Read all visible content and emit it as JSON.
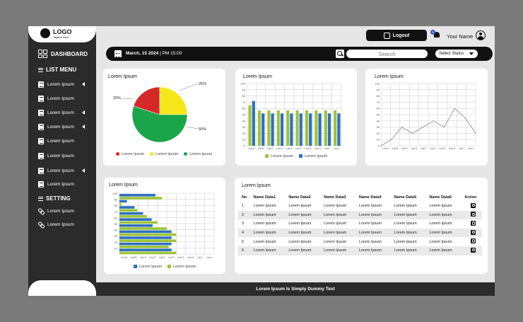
{
  "logo": {
    "text": "LOGO",
    "tagline": "Tagline Here"
  },
  "sidebar": {
    "dashboard_label": "DASHBOARD",
    "list_menu_label": "LIST MENU",
    "list_items": [
      {
        "label": "Lorem Ipsum",
        "caret": true
      },
      {
        "label": "Lorem Ipsum",
        "caret": false
      },
      {
        "label": "Lorem Ipsum",
        "caret": true
      },
      {
        "label": "Lorem Ipsum",
        "caret": true
      },
      {
        "label": "Lorem Ipsum",
        "caret": false
      },
      {
        "label": "Lorem Ipsum",
        "caret": false
      },
      {
        "label": "Lorem Ipsum",
        "caret": true
      },
      {
        "label": "Lorem Ipsum",
        "caret": false
      }
    ],
    "setting_label": "SETTING",
    "setting_items": [
      {
        "label": "Lorem Ipsum"
      },
      {
        "label": "Lorem Ipsum"
      }
    ]
  },
  "header": {
    "logout_label": "Logout",
    "notification_count": "5",
    "user_name": "Your Name",
    "date": "March, 15 2024",
    "time": "PM 15:00",
    "search_placeholder": "Search",
    "status_select": "Select Status"
  },
  "colors": {
    "accent_dark": "#111111",
    "sidebar": "#2b2b2b",
    "red": "#d62828",
    "yellow": "#f6e71a",
    "green": "#1aa54a",
    "blue": "#2f6fbf",
    "olive": "#9dc43a"
  },
  "chart_data": [
    {
      "type": "pie",
      "title": "Lorem Ipsum",
      "labels": [
        "Lorem Ipsum",
        "Lorem Ipsum",
        "Lorem Ipsum"
      ],
      "values": [
        20,
        25,
        55
      ],
      "value_labels": [
        "20%",
        "25%",
        "55%"
      ],
      "colors": [
        "#d62828",
        "#f6e71a",
        "#1aa54a"
      ],
      "legend": "bottom"
    },
    {
      "type": "bar",
      "title": "Lorem Ipsum",
      "categories": [
        "List A",
        "List B",
        "List C",
        "List D",
        "List E",
        "List F",
        "List G",
        "List H",
        "List I",
        "List J"
      ],
      "series": [
        {
          "name": "Lorem Ipsum",
          "color": "#9dc43a",
          "values": [
            65,
            57,
            57,
            57,
            57,
            57,
            57,
            57,
            57,
            57
          ]
        },
        {
          "name": "Lorem Ipsum",
          "color": "#2f6fbf",
          "values": [
            72,
            52,
            52,
            52,
            52,
            52,
            52,
            52,
            52,
            52
          ]
        }
      ],
      "ylim": [
        0,
        100
      ],
      "yticks": [
        0,
        10,
        20,
        30,
        40,
        50,
        60,
        70,
        80,
        90,
        100
      ],
      "grid": true,
      "legend": "bottom"
    },
    {
      "type": "line",
      "title": "Lorem Ipsum",
      "categories": [
        "List A",
        "List B",
        "List C",
        "List D",
        "List E",
        "List F",
        "List G",
        "List H",
        "List I",
        "List J"
      ],
      "series": [
        {
          "values": [
            0,
            10,
            30,
            20,
            30,
            40,
            30,
            60,
            45,
            20
          ]
        }
      ],
      "ylim": [
        0,
        100
      ],
      "yticks": [
        0,
        10,
        20,
        30,
        40,
        50,
        60,
        70,
        80,
        90,
        100
      ],
      "grid": true
    },
    {
      "type": "bar",
      "orientation": "horizontal",
      "title": "Lorem Ipsum",
      "categories": [
        "100",
        "90",
        "80",
        "70",
        "60",
        "50",
        "40",
        "30",
        "20",
        "10"
      ],
      "xticks": [
        "List A",
        "List B",
        "List C",
        "List D",
        "List E",
        "List F",
        "List G",
        "List H",
        "List I",
        "List J"
      ],
      "series": [
        {
          "name": "Lorem Ipsum",
          "color": "#2f6fbf",
          "values": [
            3.8,
            0.8,
            1.6,
            2.5,
            3.4,
            3.5,
            5.5,
            5.5,
            5.5,
            5.5
          ]
        },
        {
          "name": "Lorem Ipsum",
          "color": "#9dc43a",
          "values": [
            4.5,
            0.2,
            1.9,
            2.9,
            4.0,
            5.0,
            6.0,
            6.0,
            5.2,
            6.0
          ]
        }
      ],
      "xlim": [
        0,
        10
      ],
      "grid": true,
      "legend": "bottom"
    }
  ],
  "table": {
    "title": "Lorem Ipsum",
    "columns": [
      "No",
      "Name Data1",
      "Name Data2",
      "Name Data3",
      "Name Data4",
      "Name Data5",
      "Name Data6",
      "Action"
    ],
    "rows": [
      [
        "1",
        "Lorem Ipsum",
        "Lorem Ipsum",
        "Lorem Ipsum",
        "Lorem Ipsum",
        "Lorem Ipsum",
        "Lorem Ipsum"
      ],
      [
        "2",
        "Lorem Ipsum",
        "Lorem Ipsum",
        "Lorem Ipsum",
        "Lorem Ipsum",
        "Lorem Ipsum",
        "Lorem Ipsum"
      ],
      [
        "3",
        "Lorem Ipsum",
        "Lorem Ipsum",
        "Lorem Ipsum",
        "Lorem Ipsum",
        "Lorem Ipsum",
        "Lorem Ipsum"
      ],
      [
        "4",
        "Lorem Ipsum",
        "Lorem Ipsum",
        "Lorem Ipsum",
        "Lorem Ipsum",
        "Lorem Ipsum",
        "Lorem Ipsum"
      ],
      [
        "5",
        "Lorem Ipsum",
        "Lorem Ipsum",
        "Lorem Ipsum",
        "Lorem Ipsum",
        "Lorem Ipsum",
        "Lorem Ipsum"
      ],
      [
        "6",
        "Lorem Ipsum",
        "Lorem Ipsum",
        "Lorem Ipsum",
        "Lorem Ipsum",
        "Lorem Ipsum",
        "Lorem Ipsum"
      ]
    ],
    "action_icon": "search-icon"
  },
  "footer": {
    "text": "Lorem Ipsum Is Simply Dummy Text"
  }
}
